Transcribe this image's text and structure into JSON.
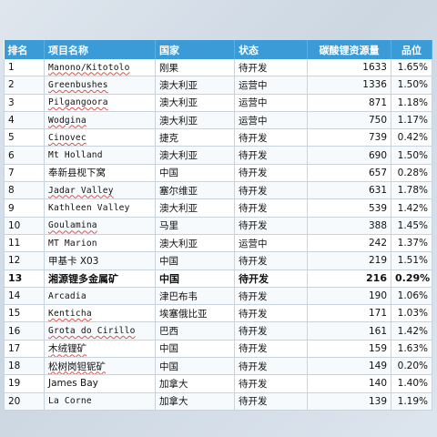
{
  "headers": [
    "排名",
    "项目名称",
    "国家",
    "状态",
    "碳酸锂资源量",
    "品位"
  ],
  "rows": [
    {
      "rank": "1",
      "name": "Manono/Kitotolo",
      "country": "刚果",
      "status": "待开发",
      "reserve": "1633",
      "grade": "1.65%",
      "mono": true,
      "wavy": true
    },
    {
      "rank": "2",
      "name": "Greenbushes",
      "country": "澳大利亚",
      "status": "运营中",
      "reserve": "1336",
      "grade": "1.50%",
      "mono": true,
      "wavy": true
    },
    {
      "rank": "3",
      "name": "Pilgangoora",
      "country": "澳大利亚",
      "status": "运营中",
      "reserve": "871",
      "grade": "1.18%",
      "mono": true,
      "wavy": true
    },
    {
      "rank": "4",
      "name": "Wodgina",
      "country": "澳大利亚",
      "status": "运营中",
      "reserve": "750",
      "grade": "1.17%",
      "mono": true,
      "wavy": true
    },
    {
      "rank": "5",
      "name": "Cinovec",
      "country": "捷克",
      "status": "待开发",
      "reserve": "739",
      "grade": "0.42%",
      "mono": true,
      "wavy": true
    },
    {
      "rank": "6",
      "name": "Mt Holland",
      "country": "澳大利亚",
      "status": "待开发",
      "reserve": "690",
      "grade": "1.50%",
      "mono": true,
      "wavy": false
    },
    {
      "rank": "7",
      "name": "奉新县枧下窝",
      "country": "中国",
      "status": "待开发",
      "reserve": "657",
      "grade": "0.28%",
      "mono": false,
      "wavy": false
    },
    {
      "rank": "8",
      "name": "Jadar Valley",
      "country": "塞尔维亚",
      "status": "待开发",
      "reserve": "631",
      "grade": "1.78%",
      "mono": true,
      "wavy": true
    },
    {
      "rank": "9",
      "name": "Kathleen Valley",
      "country": "澳大利亚",
      "status": "待开发",
      "reserve": "539",
      "grade": "1.42%",
      "mono": true,
      "wavy": false
    },
    {
      "rank": "10",
      "name": "Goulamina",
      "country": "马里",
      "status": "待开发",
      "reserve": "388",
      "grade": "1.45%",
      "mono": true,
      "wavy": true
    },
    {
      "rank": "11",
      "name": "MT Marion",
      "country": "澳大利亚",
      "status": "运营中",
      "reserve": "242",
      "grade": "1.37%",
      "mono": true,
      "wavy": false
    },
    {
      "rank": "12",
      "name": "甲基卡 X03",
      "country": "中国",
      "status": "待开发",
      "reserve": "219",
      "grade": "1.51%",
      "mono": false,
      "wavy": false
    },
    {
      "rank": "13",
      "name": "湘源锂多金属矿",
      "country": "中国",
      "status": "待开发",
      "reserve": "216",
      "grade": "0.29%",
      "mono": false,
      "wavy": false,
      "highlight": true
    },
    {
      "rank": "14",
      "name": "Arcadia",
      "country": "津巴布韦",
      "status": "待开发",
      "reserve": "190",
      "grade": "1.06%",
      "mono": true,
      "wavy": false
    },
    {
      "rank": "15",
      "name": "Kenticha",
      "country": "埃塞俄比亚",
      "status": "待开发",
      "reserve": "171",
      "grade": "1.03%",
      "mono": true,
      "wavy": true
    },
    {
      "rank": "16",
      "name": "Grota do Cirillo",
      "country": "巴西",
      "status": "待开发",
      "reserve": "161",
      "grade": "1.42%",
      "mono": true,
      "wavy": true
    },
    {
      "rank": "17",
      "name": "木绒锂矿",
      "country": "中国",
      "status": "待开发",
      "reserve": "159",
      "grade": "1.63%",
      "mono": false,
      "wavy": true
    },
    {
      "rank": "18",
      "name": "松树岗钽铌矿",
      "country": "中国",
      "status": "待开发",
      "reserve": "149",
      "grade": "0.20%",
      "mono": false,
      "wavy": true
    },
    {
      "rank": "19",
      "name": "James Bay",
      "country": "加拿大",
      "status": "待开发",
      "reserve": "140",
      "grade": "1.40%",
      "mono": false,
      "wavy": false
    },
    {
      "rank": "20",
      "name": "La Corne",
      "country": "加拿大",
      "status": "待开发",
      "reserve": "139",
      "grade": "1.19%",
      "mono": true,
      "wavy": false
    }
  ]
}
